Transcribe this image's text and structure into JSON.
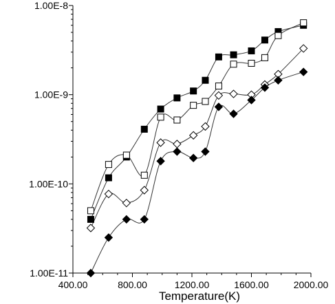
{
  "chart_data": {
    "type": "scatter",
    "xlabel": "Temperature(K)",
    "ylabel": "",
    "xlim": [
      400,
      2000
    ],
    "ylim": [
      1e-11,
      1e-08
    ],
    "yscale": "log",
    "grid": false,
    "x_tick_labels": [
      "400.00",
      "800.00",
      "1200.00",
      "1600.00",
      "2000.00"
    ],
    "x_ticks": [
      400,
      800,
      1200,
      1600,
      2000
    ],
    "y_tick_labels": [
      "1.00E-11",
      "1.00E-10",
      "1.00E-9",
      "1.00E-8"
    ],
    "y_ticks": [
      1e-11,
      1e-10,
      1e-09,
      1e-08
    ],
    "series": [
      {
        "marker": "filled-square",
        "color": "#000000",
        "x": [
          520,
          640,
          760,
          880,
          990,
          1100,
          1210,
          1290,
          1380,
          1480,
          1600,
          1690,
          1780,
          1950
        ],
        "y": [
          4e-11,
          1.17e-10,
          2e-10,
          4.1e-10,
          6.9e-10,
          9.2e-10,
          1.1e-09,
          1.45e-09,
          2.65e-09,
          2.8e-09,
          3.1e-09,
          4.1e-09,
          5.1e-09,
          6e-09
        ]
      },
      {
        "marker": "open-square",
        "color": "#000000",
        "x": [
          520,
          640,
          760,
          880,
          990,
          1100,
          1210,
          1290,
          1380,
          1480,
          1600,
          1690,
          1780,
          1950
        ],
        "y": [
          5e-11,
          1.65e-10,
          2.1e-10,
          1.25e-10,
          5.6e-10,
          5.2e-10,
          7.6e-10,
          8.4e-10,
          1.25e-09,
          2.2e-09,
          2.25e-09,
          2.6e-09,
          4.6e-09,
          6.4e-09
        ]
      },
      {
        "marker": "open-diamond",
        "color": "#000000",
        "x": [
          520,
          640,
          760,
          880,
          990,
          1100,
          1210,
          1290,
          1380,
          1480,
          1600,
          1690,
          1780,
          1950
        ],
        "y": [
          3.2e-11,
          7.7e-11,
          6.1e-11,
          8.5e-11,
          2.9e-10,
          2.8e-10,
          3.5e-10,
          4.4e-10,
          9.8e-10,
          1.02e-09,
          1e-09,
          1.3e-09,
          1.7e-09,
          3.3e-09
        ]
      },
      {
        "marker": "filled-diamond",
        "color": "#000000",
        "x": [
          520,
          640,
          760,
          880,
          990,
          1100,
          1210,
          1290,
          1380,
          1480,
          1600,
          1690,
          1780,
          1950
        ],
        "y": [
          1e-11,
          2.5e-11,
          4e-11,
          4e-11,
          1.8e-10,
          2.3e-10,
          1.95e-10,
          2.3e-10,
          7.3e-10,
          6.1e-10,
          8.7e-10,
          1.2e-09,
          1.45e-09,
          1.8e-09
        ]
      }
    ]
  }
}
